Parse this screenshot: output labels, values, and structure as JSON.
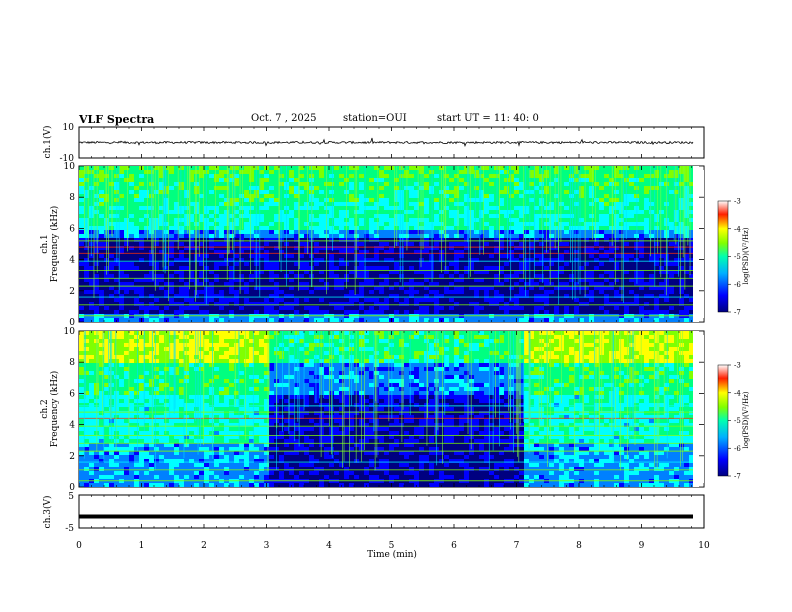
{
  "header": {
    "title": "VLF Spectra",
    "date": "Oct. 7 , 2025",
    "station": "station=OUI",
    "start": "start UT =   11: 40: 0"
  },
  "chart_data": [
    {
      "type": "line",
      "panel": "ch1_waveform",
      "ylabel": "ch.1(V)",
      "ylim": [
        -10,
        10
      ],
      "yticks": [
        "10",
        "-10"
      ],
      "baseline": 0
    },
    {
      "type": "heatmap",
      "panel": "ch1_spectrogram",
      "ylabel": "ch.1\nFrequency (kHz)",
      "ylim": [
        0,
        10
      ],
      "yticks": [
        0,
        2,
        4,
        6,
        8,
        10
      ],
      "xlim": [
        0,
        9.83
      ],
      "colorbar": {
        "label": "log(PSD)(V²/Hz)",
        "range": [
          -7,
          -3
        ],
        "ticks": [
          "-3",
          "-4",
          "-5",
          "-6",
          "-7"
        ]
      },
      "features": {
        "noise_floor_khz": 5.5,
        "green_band_khz": [
          6,
          10
        ]
      }
    },
    {
      "type": "heatmap",
      "panel": "ch2_spectrogram",
      "ylabel": "ch.2\nFrequency (kHz)",
      "ylim": [
        0,
        10
      ],
      "yticks": [
        0,
        2,
        4,
        6,
        8,
        10
      ],
      "xlim": [
        0,
        9.83
      ],
      "colorbar": {
        "label": "log(PSD)(V²/Hz)",
        "range": [
          -7,
          -3
        ],
        "ticks": [
          "-3",
          "-4",
          "-5",
          "-6",
          "-7"
        ]
      },
      "features": {
        "strong_interval_min": [
          [
            0,
            3.0
          ],
          [
            7.1,
            9.83
          ]
        ]
      }
    },
    {
      "type": "line",
      "panel": "ch3_waveform",
      "ylabel": "ch.3(V)",
      "ylim": [
        -5,
        5
      ],
      "yticks": [
        "5",
        "-5"
      ],
      "baseline": -1.5
    }
  ],
  "xaxis": {
    "label": "Time (min)",
    "ticks": [
      "0",
      "1",
      "2",
      "3",
      "4",
      "5",
      "6",
      "7",
      "8",
      "9",
      "10"
    ]
  },
  "colors": {
    "colormap": [
      "#000080",
      "#0000ff",
      "#0080ff",
      "#00ffff",
      "#00ff80",
      "#80ff00",
      "#ffff00",
      "#ff8000",
      "#ff0000",
      "#ffffff"
    ]
  }
}
